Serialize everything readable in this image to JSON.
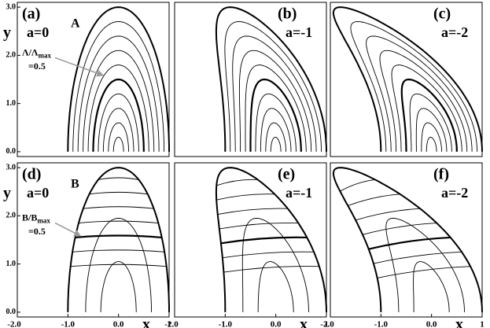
{
  "chart_data": [
    {
      "type": "contour",
      "panel": "(a)",
      "param": {
        "value": 0,
        "label": "a=0"
      },
      "field": "A",
      "ylabel": "y",
      "xlim": [
        -2,
        1
      ],
      "ylim": [
        -0.1,
        3.1
      ],
      "yticks": [
        {
          "value": 0,
          "label": "0.0"
        },
        {
          "value": 1,
          "label": "1.0"
        },
        {
          "value": 2,
          "label": "2.0"
        },
        {
          "value": 3,
          "label": "3.0"
        }
      ],
      "annotation": {
        "text": "Λ/Λ",
        "sub": "max",
        "line2": "=0.5"
      }
    },
    {
      "type": "contour",
      "panel": "(b)",
      "param": {
        "value": -1,
        "label": "a=-1"
      },
      "xlim": [
        -2,
        1
      ],
      "ylim": [
        -0.1,
        3.1
      ]
    },
    {
      "type": "contour",
      "panel": "(c)",
      "param": {
        "value": -2,
        "label": "a=-2"
      },
      "xlim": [
        -2,
        1
      ],
      "ylim": [
        -0.1,
        3.1
      ]
    },
    {
      "type": "field-lines",
      "panel": "(d)",
      "param": {
        "value": 0,
        "label": "a=0"
      },
      "field": "B",
      "ylabel": "y",
      "xlabel": "x",
      "xlim": [
        -2,
        1
      ],
      "ylim": [
        -0.1,
        3.1
      ],
      "xticks": [
        {
          "value": -2,
          "label": "-2.0"
        },
        {
          "value": -1,
          "label": "-1.0"
        },
        {
          "value": 0,
          "label": "0.0"
        },
        1
      ],
      "yticks": [
        {
          "value": 0,
          "label": "0.0"
        },
        {
          "value": 1,
          "label": "1.0"
        },
        {
          "value": 2,
          "label": "2.0"
        },
        {
          "value": 3,
          "label": "3.0"
        }
      ],
      "annotation": {
        "text": "B/B",
        "sub": "max",
        "line2": "=0.5"
      }
    },
    {
      "type": "field-lines",
      "panel": "(e)",
      "param": {
        "value": -1,
        "label": "a=-1"
      },
      "xlabel": "x",
      "xlim": [
        -2,
        1
      ],
      "ylim": [
        -0.1,
        3.1
      ],
      "xticks": [
        {
          "value": -2,
          "label": "-2.0"
        },
        {
          "value": -1,
          "label": "-1.0"
        },
        {
          "value": 0,
          "label": "0.0"
        },
        1
      ]
    },
    {
      "type": "field-lines",
      "panel": "(f)",
      "param": {
        "value": -2,
        "label": "a=-2"
      },
      "xlabel": "x",
      "xlim": [
        -2,
        1
      ],
      "ylim": [
        -0.1,
        3.1
      ],
      "xticks": [
        {
          "value": -2,
          "label": "-2.0"
        },
        {
          "value": -1,
          "label": "-1.0"
        },
        {
          "value": 0,
          "label": "0.0"
        },
        1
      ]
    }
  ]
}
